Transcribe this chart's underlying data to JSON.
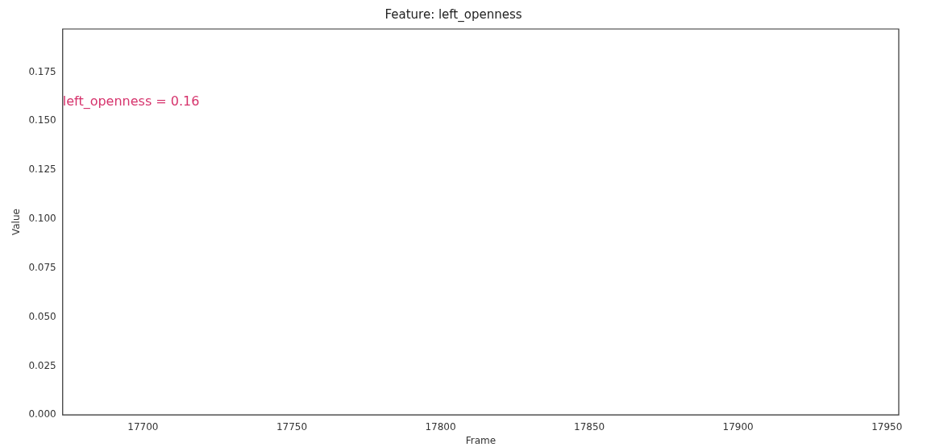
{
  "chart_data": {
    "type": "line",
    "title": "Feature: left_openness",
    "xlabel": "Frame",
    "ylabel": "Value",
    "xlim": [
      17673,
      17954
    ],
    "xticks": [
      17700,
      17750,
      17800,
      17850,
      17900,
      17950
    ],
    "ylim": [
      0,
      0.197
    ],
    "yticks": [
      {
        "value": 0,
        "label": "0.000"
      },
      {
        "value": 0.025,
        "label": "0.025"
      },
      {
        "value": 0.05,
        "label": "0.050"
      },
      {
        "value": 0.075,
        "label": "0.075"
      },
      {
        "value": 0.1,
        "label": "0.100"
      },
      {
        "value": 0.125,
        "label": "0.125"
      },
      {
        "value": 0.15,
        "label": "0.150"
      },
      {
        "value": 0.175,
        "label": "0.175"
      }
    ],
    "grid": false,
    "legend": false,
    "annotations": [
      "left_openness = 0.16"
    ]
  }
}
